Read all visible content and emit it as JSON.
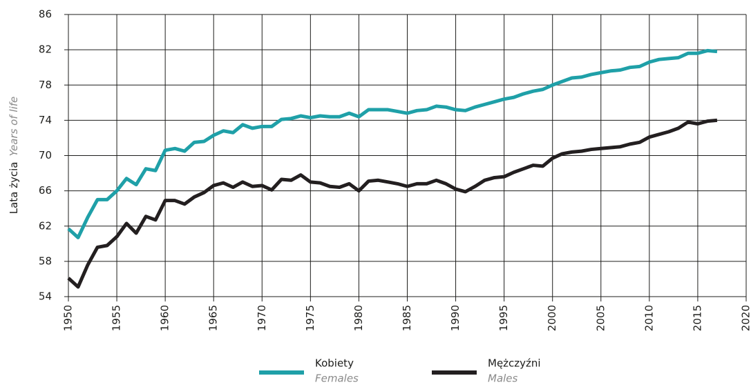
{
  "chart_data": {
    "type": "line",
    "ylabel": "Lata życia",
    "ylabel_en": "Years of life",
    "x": [
      1950,
      1951,
      1952,
      1953,
      1954,
      1955,
      1956,
      1957,
      1958,
      1959,
      1960,
      1961,
      1962,
      1963,
      1964,
      1965,
      1966,
      1967,
      1968,
      1969,
      1970,
      1971,
      1972,
      1973,
      1974,
      1975,
      1976,
      1977,
      1978,
      1979,
      1980,
      1981,
      1982,
      1983,
      1984,
      1985,
      1986,
      1987,
      1988,
      1989,
      1990,
      1991,
      1992,
      1993,
      1994,
      1995,
      1996,
      1997,
      1998,
      1999,
      2000,
      2001,
      2002,
      2003,
      2004,
      2005,
      2006,
      2007,
      2008,
      2009,
      2010,
      2011,
      2012,
      2013,
      2014,
      2015,
      2016,
      2017
    ],
    "series": [
      {
        "name": "Kobiety",
        "name_en": "Females",
        "color": "#1fa0a8",
        "values": [
          61.7,
          60.7,
          63.0,
          65.0,
          65.0,
          66.0,
          67.4,
          66.7,
          68.5,
          68.3,
          70.6,
          70.8,
          70.5,
          71.5,
          71.6,
          72.3,
          72.8,
          72.6,
          73.5,
          73.1,
          73.3,
          73.3,
          74.1,
          74.2,
          74.5,
          74.3,
          74.5,
          74.4,
          74.4,
          74.8,
          74.4,
          75.2,
          75.2,
          75.2,
          75.0,
          74.8,
          75.1,
          75.2,
          75.6,
          75.5,
          75.2,
          75.1,
          75.5,
          75.8,
          76.1,
          76.4,
          76.6,
          77.0,
          77.3,
          77.5,
          78.0,
          78.4,
          78.8,
          78.9,
          79.2,
          79.4,
          79.6,
          79.7,
          80.0,
          80.1,
          80.6,
          80.9,
          81.0,
          81.1,
          81.6,
          81.6,
          81.9,
          81.8
        ]
      },
      {
        "name": "Mężczyźni",
        "name_en": "Males",
        "color": "#231f20",
        "values": [
          56.1,
          55.1,
          57.6,
          59.6,
          59.8,
          60.8,
          62.3,
          61.2,
          63.1,
          62.7,
          64.9,
          64.9,
          64.5,
          65.3,
          65.8,
          66.6,
          66.9,
          66.4,
          67.0,
          66.5,
          66.6,
          66.1,
          67.3,
          67.2,
          67.8,
          67.0,
          66.9,
          66.5,
          66.4,
          66.8,
          66.0,
          67.1,
          67.2,
          67.0,
          66.8,
          66.5,
          66.8,
          66.8,
          67.2,
          66.8,
          66.2,
          65.9,
          66.5,
          67.2,
          67.5,
          67.6,
          68.1,
          68.5,
          68.9,
          68.8,
          69.7,
          70.2,
          70.4,
          70.5,
          70.7,
          70.8,
          70.9,
          71.0,
          71.3,
          71.5,
          72.1,
          72.4,
          72.7,
          73.1,
          73.8,
          73.6,
          73.9,
          74.0
        ]
      }
    ],
    "xlim": [
      1950,
      2020
    ],
    "xticks": [
      1950,
      1955,
      1960,
      1965,
      1970,
      1975,
      1980,
      1985,
      1990,
      1995,
      2000,
      2005,
      2010,
      2015,
      2020
    ],
    "ylim": [
      54,
      86
    ],
    "yticks": [
      54,
      58,
      62,
      66,
      70,
      74,
      78,
      82,
      86
    ],
    "grid": true
  }
}
